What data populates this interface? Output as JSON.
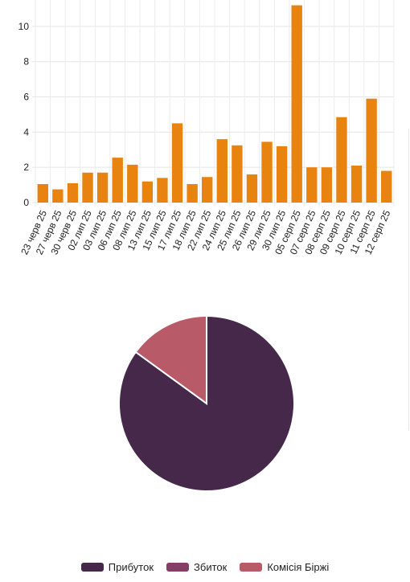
{
  "chart_data": [
    {
      "type": "bar",
      "categories": [
        "23 черв 25",
        "27 черв 25",
        "30 черв 25",
        "02 лип 25",
        "03 лип 25",
        "06 лип 25",
        "08 лип 25",
        "13 лип 25",
        "15 лип 25",
        "17 лип 25",
        "18 лип 25",
        "22 лип 25",
        "24 лип 25",
        "25 лип 25",
        "26 лип 25",
        "29 лип 25",
        "30 лип 25",
        "05 серп 25",
        "07 серп 25",
        "08 серп 25",
        "09 серп 25",
        "10 серп 25",
        "11 серп 25",
        "12 серп 25"
      ],
      "values": [
        1.05,
        0.75,
        1.1,
        1.7,
        1.7,
        2.55,
        2.15,
        1.2,
        1.4,
        4.5,
        1.05,
        1.45,
        3.6,
        3.25,
        1.6,
        3.45,
        3.2,
        11.2,
        2.0,
        2.0,
        4.85,
        2.1,
        5.9,
        1.8
      ],
      "yticks": [
        0,
        2,
        4,
        6,
        8,
        10
      ],
      "ylim": [
        0,
        11.5
      ],
      "color": "#e8830f",
      "grid": true
    },
    {
      "type": "pie",
      "slices": [
        {
          "label": "Прибуток",
          "value": 85,
          "color": "#45284a"
        },
        {
          "label": "Збиток",
          "value": 0,
          "color": "#853f64"
        },
        {
          "label": "Комісія Біржі",
          "value": 15,
          "color": "#b85a68"
        }
      ]
    }
  ],
  "legend": {
    "items": [
      {
        "label": "Прибуток",
        "color": "#45284a"
      },
      {
        "label": "Збиток",
        "color": "#853f64"
      },
      {
        "label": "Комісія Біржі",
        "color": "#b85a68"
      }
    ]
  }
}
